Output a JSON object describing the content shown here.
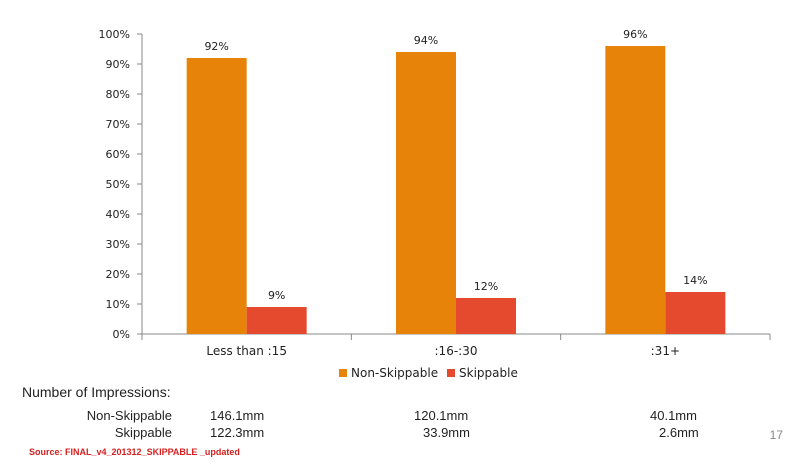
{
  "chart_data": {
    "type": "bar",
    "categories": [
      "Less than :15",
      ":16-:30",
      ":31+"
    ],
    "series": [
      {
        "name": "Non-Skippable",
        "values": [
          92,
          94,
          96
        ],
        "labels": [
          "92%",
          "94%",
          "96%"
        ]
      },
      {
        "name": "Skippable",
        "values": [
          9,
          12,
          14
        ],
        "labels": [
          "9%",
          "12%",
          "14%"
        ]
      }
    ],
    "ylim": [
      0,
      100
    ],
    "yticks": [
      "0%",
      "10%",
      "20%",
      "30%",
      "40%",
      "50%",
      "60%",
      "70%",
      "80%",
      "90%",
      "100%"
    ],
    "legend_position": "bottom",
    "grid": false
  },
  "colors": {
    "non_skippable": "#e8830a",
    "skippable": "#e64a2e"
  },
  "legend": {
    "non_skippable": "Non-Skippable",
    "skippable": "Skippable"
  },
  "impressions": {
    "title": "Number of Impressions:",
    "rows": [
      {
        "label": "Non-Skippable",
        "values": [
          "146.1mm",
          "120.1mm",
          "40.1mm"
        ]
      },
      {
        "label": "Skippable",
        "values": [
          "122.3mm",
          "33.9mm",
          "2.6mm"
        ]
      }
    ]
  },
  "page_number": "17",
  "source": "Source: FINAL_v4_201312_SKIPPABLE _updated"
}
